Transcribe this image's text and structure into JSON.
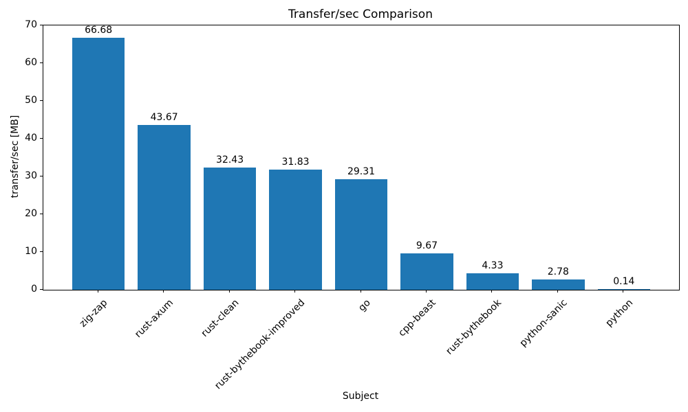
{
  "chart_data": {
    "type": "bar",
    "title": "Transfer/sec Comparison",
    "xlabel": "Subject",
    "ylabel": "transfer/sec [MB]",
    "categories": [
      "zig-zap",
      "rust-axum",
      "rust-clean",
      "rust-bythebook-improved",
      "go",
      "cpp-beast",
      "rust-bythebook",
      "python-sanic",
      "python"
    ],
    "values": [
      66.68,
      43.67,
      32.43,
      31.83,
      29.31,
      9.67,
      4.33,
      2.78,
      0.14
    ],
    "value_labels": [
      "66.68",
      "43.67",
      "32.43",
      "31.83",
      "29.31",
      "9.67",
      "4.33",
      "2.78",
      "0.14"
    ],
    "ylim": [
      0,
      70
    ],
    "yticks": [
      0,
      10,
      20,
      30,
      40,
      50,
      60,
      70
    ],
    "bar_color": "#1f77b4",
    "grid": false,
    "legend": false,
    "bar_label_position": "above",
    "x_tick_rotation_deg": 45
  }
}
